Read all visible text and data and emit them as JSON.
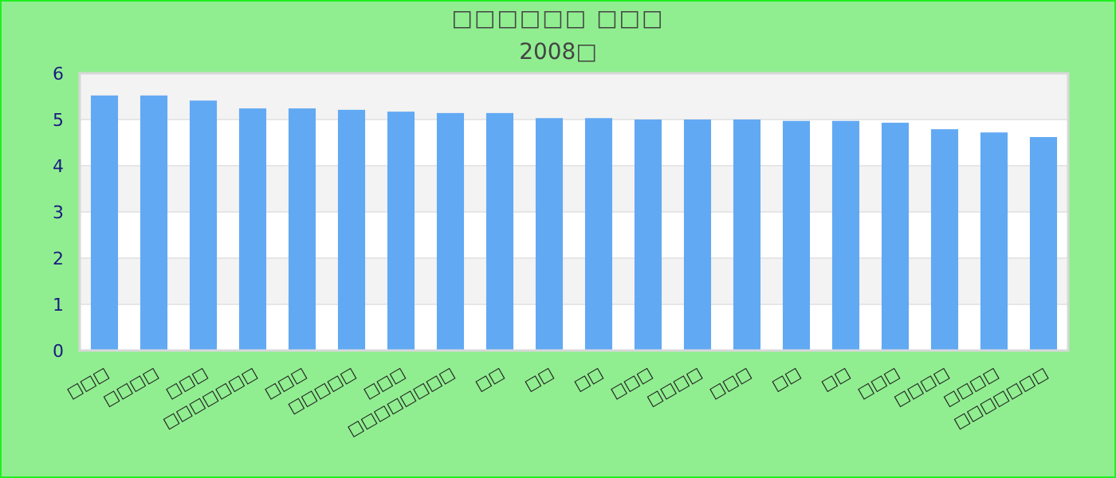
{
  "chart_data": {
    "type": "bar",
    "title": "□□□□□□ □□□",
    "subtitle": "2008□",
    "categories": [
      "□□□",
      "□□□□",
      "□□□",
      "□□□□□□□",
      "□□□",
      "□□□□□",
      "□□□",
      "□□□□□□□□",
      "□□",
      "□□",
      "□□",
      "□□□",
      "□□□□",
      "□□□",
      "□□",
      "□□",
      "□□□",
      "□□□□",
      "□□□□",
      "□□□□□□□"
    ],
    "values": [
      5.52,
      5.52,
      5.41,
      5.24,
      5.24,
      5.21,
      5.17,
      5.14,
      5.14,
      5.03,
      5.03,
      5.0,
      5.0,
      5.0,
      4.97,
      4.97,
      4.93,
      4.79,
      4.72,
      4.62
    ],
    "color": "#62a9f3",
    "ylim": [
      0,
      6
    ],
    "yticks": [
      0,
      1,
      2,
      3,
      4,
      5,
      6
    ],
    "grid": "y"
  }
}
